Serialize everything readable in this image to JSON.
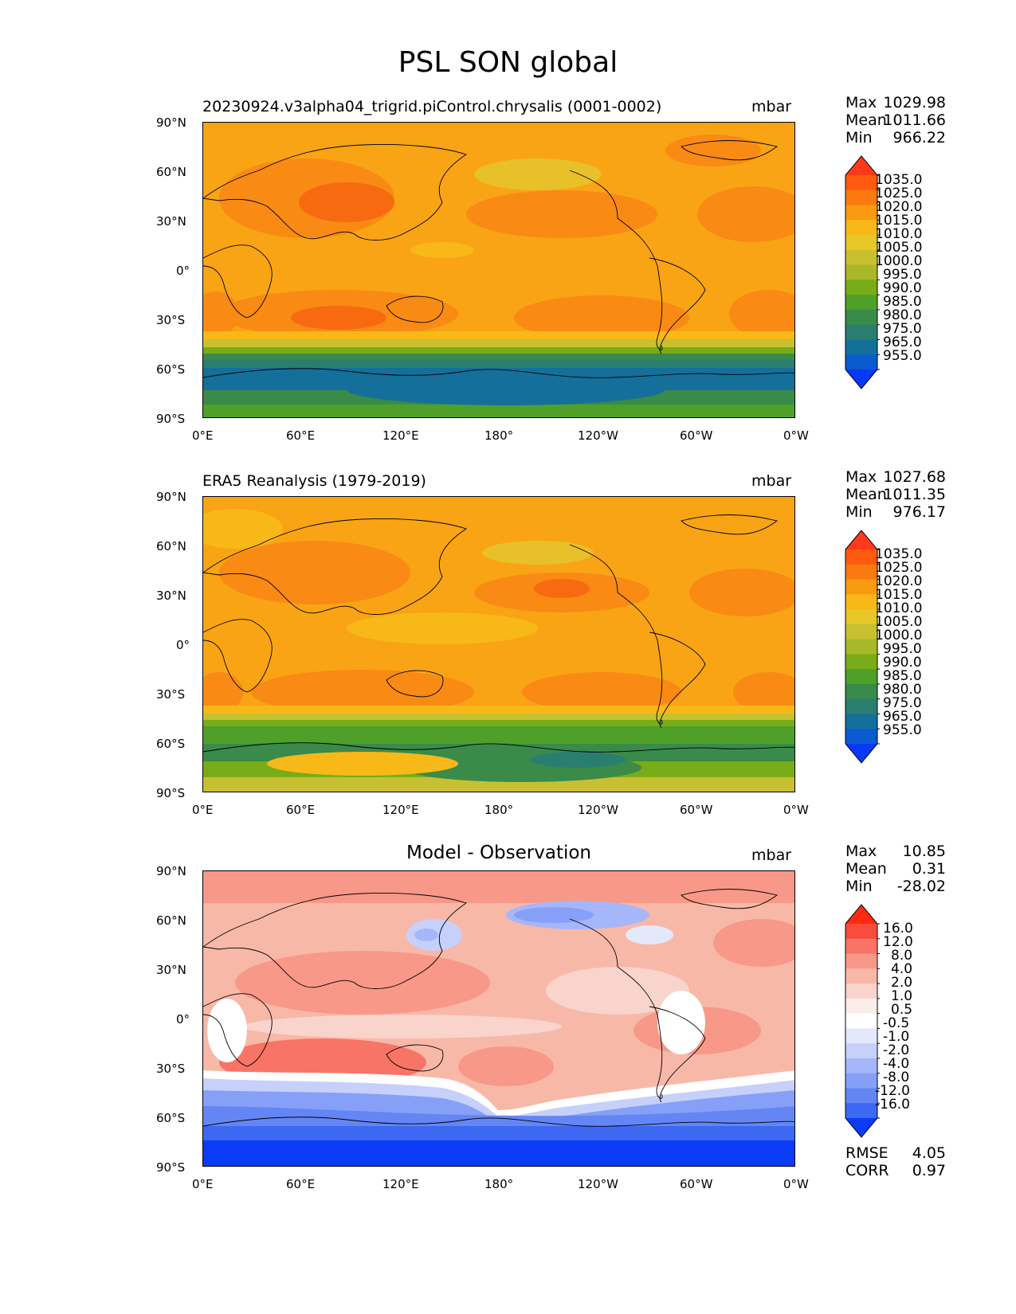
{
  "figure_title": "PSL SON global",
  "panels": [
    {
      "title": "20230924.v3alpha04_trigrid.piControl.chrysalis (0001-0002)",
      "units": "mbar",
      "stats": {
        "max_label": "Max",
        "max": "1029.98",
        "mean_label": "Mean",
        "mean": "1011.66",
        "min_label": "Min",
        "min": "966.22"
      },
      "colorbar_labels": [
        "1035.0",
        "1025.0",
        "1020.0",
        "1015.0",
        "1010.0",
        "1005.0",
        "1000.0",
        "995.0",
        "990.0",
        "985.0",
        "980.0",
        "975.0",
        "965.0",
        "955.0"
      ]
    },
    {
      "title": "ERA5 Reanalysis (1979-2019)",
      "units": "mbar",
      "stats": {
        "max_label": "Max",
        "max": "1027.68",
        "mean_label": "Mean",
        "mean": "1011.35",
        "min_label": "Min",
        "min": "976.17"
      },
      "colorbar_labels": [
        "1035.0",
        "1025.0",
        "1020.0",
        "1015.0",
        "1010.0",
        "1005.0",
        "1000.0",
        "995.0",
        "990.0",
        "985.0",
        "980.0",
        "975.0",
        "965.0",
        "955.0"
      ]
    },
    {
      "title": "Model - Observation",
      "units": "mbar",
      "stats": {
        "max_label": "Max",
        "max": "10.85",
        "mean_label": "Mean",
        "mean": "0.31",
        "min_label": "Min",
        "min": "-28.02"
      },
      "colorbar_labels": [
        "16.0",
        "12.0",
        "8.0",
        "4.0",
        "2.0",
        "1.0",
        "0.5",
        "-0.5",
        "-1.0",
        "-2.0",
        "-4.0",
        "-8.0",
        "-12.0",
        "-16.0"
      ],
      "extra_stats": {
        "rmse_label": "RMSE",
        "rmse": "4.05",
        "corr_label": "CORR",
        "corr": "0.97"
      }
    }
  ],
  "lat_ticks": [
    "90°N",
    "60°N",
    "30°N",
    "0°",
    "30°S",
    "60°S",
    "90°S"
  ],
  "lon_ticks": [
    "0°E",
    "60°E",
    "120°E",
    "180°",
    "120°W",
    "60°W",
    "0°W"
  ],
  "colors": {
    "abs_scale": [
      "#ff3a1a",
      "#ff5a10",
      "#fb7a10",
      "#f99a10",
      "#f7b818",
      "#e6c828",
      "#c8c030",
      "#a8b828",
      "#78ac18",
      "#4ea028",
      "#3a8a4a",
      "#2a7e70",
      "#14709a",
      "#0a5ad0",
      "#0838f8"
    ],
    "diff_scale": [
      "#ff2a10",
      "#f84c3c",
      "#f87466",
      "#f89888",
      "#f8b8a8",
      "#f8d4cc",
      "#fbeeea",
      "#ffffff",
      "#e4e8fb",
      "#c6d0fb",
      "#a6b6fa",
      "#86a0f8",
      "#6486f4",
      "#3c68f2",
      "#0a3cf8"
    ]
  }
}
